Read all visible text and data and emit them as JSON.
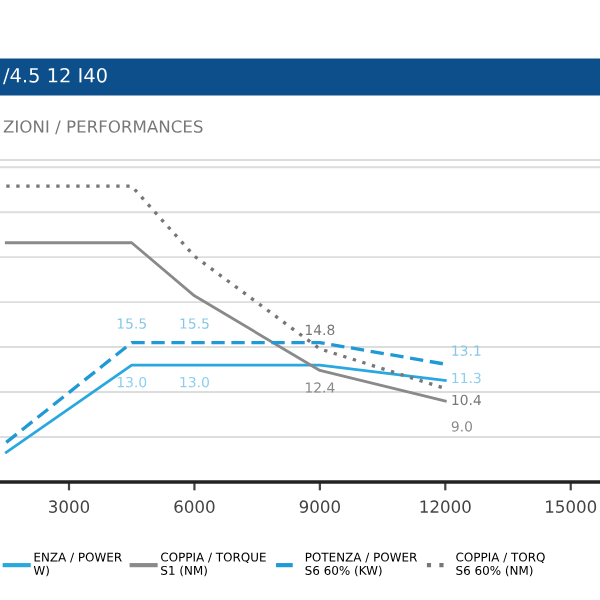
{
  "chart_data": {
    "type": "line",
    "title": "/4.5 12 I40",
    "subtitle": "ZIONI / PERFORMANCES",
    "xlim": [
      1350,
      15700
    ],
    "xticks": [
      3000,
      6000,
      9000,
      12000,
      15000
    ],
    "ylim": [
      0,
      35.8
    ],
    "yticks": [
      {
        "value": 5,
        "label": null
      },
      {
        "value": 10,
        "label": null
      },
      {
        "value": 15,
        "label": null
      },
      {
        "value": 20,
        "label": null
      },
      {
        "value": 25,
        "label": null
      },
      {
        "value": 30,
        "label": null
      },
      {
        "value": 35,
        "label": null
      }
    ],
    "tick_labels": "x",
    "grid": "y",
    "legend": "bottom",
    "marker": "none",
    "series": [
      {
        "name": "ENZA / POWER\nW)",
        "color": "#29a8e0",
        "line_style": "solid",
        "x": [
          1500,
          4500,
          6000,
          9000,
          12000
        ],
        "values": [
          3.3,
          13.0,
          13.0,
          13.0,
          11.3
        ],
        "value_labels": [
          null,
          "13.0",
          "13.0",
          null,
          "11.3"
        ]
      },
      {
        "name": "COPPIA / TORQUE\nS1 (NM)",
        "color": "#8a8a8a",
        "line_style": "solid",
        "x": [
          1500,
          4500,
          6000,
          9000,
          12000
        ],
        "values": [
          26.6,
          26.6,
          20.7,
          12.4,
          9.0
        ],
        "value_labels": [
          null,
          null,
          null,
          "12.4",
          "9.0"
        ]
      },
      {
        "name": "POTENZA / POWER\nS6 60% (KW)",
        "color": "#1f9ad6",
        "line_style": "dashed",
        "x": [
          1500,
          4500,
          6000,
          9000,
          12000
        ],
        "values": [
          4.4,
          15.5,
          15.5,
          15.5,
          13.1
        ],
        "value_labels": [
          null,
          "15.5",
          "15.5",
          null,
          "13.1"
        ]
      },
      {
        "name": "COPPIA / TORQ\nS6 60% (NM)",
        "color": "#777777",
        "line_style": "dotted",
        "x": [
          1500,
          4500,
          6000,
          9000,
          12000
        ],
        "values": [
          32.9,
          32.9,
          25.1,
          14.8,
          10.4
        ],
        "value_labels": [
          null,
          null,
          null,
          "14.8",
          "10.4"
        ]
      }
    ]
  }
}
